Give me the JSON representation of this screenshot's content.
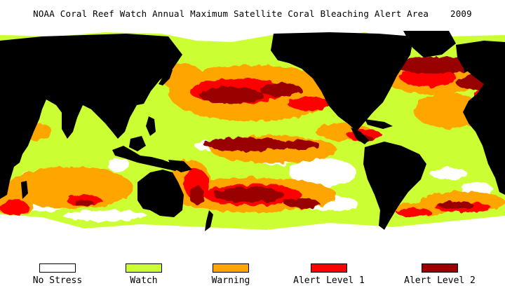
{
  "title": "NOAA Coral Reef Watch Annual Maximum Satellite Coral Bleaching Alert Area    2009",
  "colors": {
    "ocean_watch": "#ccff33",
    "no_stress": "#ffffff",
    "warning": "#ffa500",
    "alert1": "#ff0000",
    "alert2": "#990000",
    "land": "#000000",
    "ice": "#ffffff"
  },
  "legend": [
    {
      "label": "No Stress",
      "color": "#ffffff"
    },
    {
      "label": "Watch",
      "color": "#ccff33"
    },
    {
      "label": "Warning",
      "color": "#ffa500"
    },
    {
      "label": "Alert Level 1",
      "color": "#ff0000"
    },
    {
      "label": "Alert Level 2",
      "color": "#990000"
    }
  ]
}
